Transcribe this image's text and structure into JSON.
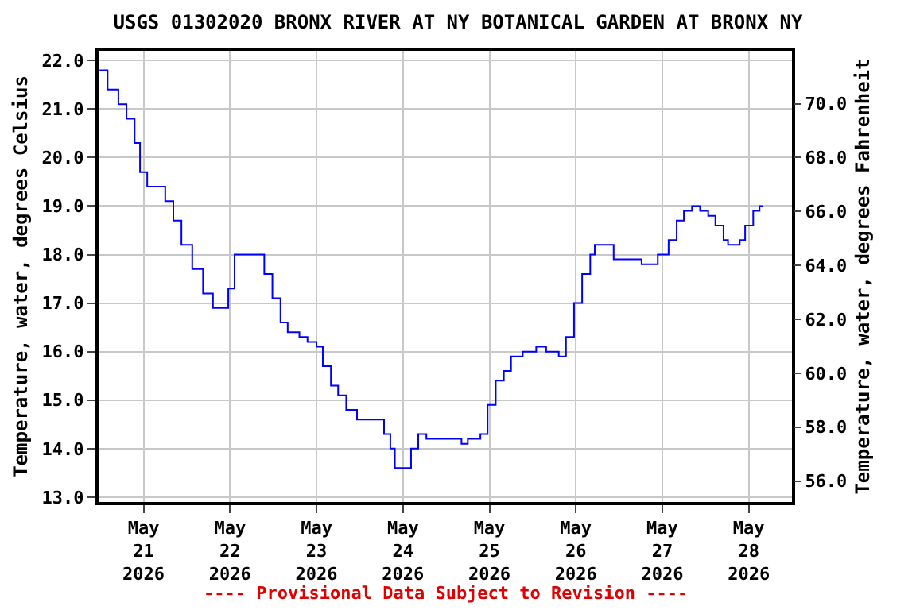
{
  "chart_data": {
    "type": "step",
    "title": "USGS 01302020 BRONX RIVER AT NY BOTANICAL GARDEN AT BRONX NY",
    "ylabel": "Temperature, water, degrees Celsius",
    "y2label": "Temperature, water, degrees Fahrenheit",
    "annotations": [
      "---- Provisional Data Subject to Revision ----"
    ],
    "x": [
      "2026-05-20T11:45",
      "2026-05-20T14:00",
      "2026-05-20T17:00",
      "2026-05-20T19:15",
      "2026-05-20T21:30",
      "2026-05-20T23:00",
      "2026-05-21T01:00",
      "2026-05-21T04:00",
      "2026-05-21T06:00",
      "2026-05-21T08:15",
      "2026-05-21T10:30",
      "2026-05-21T13:30",
      "2026-05-21T16:30",
      "2026-05-21T19:15",
      "2026-05-21T21:45",
      "2026-05-21T23:30",
      "2026-05-22T01:15",
      "2026-05-22T02:30",
      "2026-05-22T07:30",
      "2026-05-22T09:30",
      "2026-05-22T11:45",
      "2026-05-22T14:00",
      "2026-05-22T16:00",
      "2026-05-22T19:15",
      "2026-05-22T21:30",
      "2026-05-23T00:00",
      "2026-05-23T01:45",
      "2026-05-23T04:00",
      "2026-05-23T06:00",
      "2026-05-23T08:15",
      "2026-05-23T11:15",
      "2026-05-23T16:00",
      "2026-05-23T18:45",
      "2026-05-23T20:30",
      "2026-05-23T21:45",
      "2026-05-24T00:00",
      "2026-05-24T02:15",
      "2026-05-24T04:15",
      "2026-05-24T06:30",
      "2026-05-24T14:45",
      "2026-05-24T16:15",
      "2026-05-24T18:00",
      "2026-05-24T21:30",
      "2026-05-24T23:30",
      "2026-05-25T01:45",
      "2026-05-25T04:00",
      "2026-05-25T06:00",
      "2026-05-25T09:15",
      "2026-05-25T13:00",
      "2026-05-25T15:45",
      "2026-05-25T19:15",
      "2026-05-25T21:15",
      "2026-05-25T23:30",
      "2026-05-26T01:45",
      "2026-05-26T04:00",
      "2026-05-26T05:15",
      "2026-05-26T08:15",
      "2026-05-26T10:30",
      "2026-05-26T17:00",
      "2026-05-26T18:15",
      "2026-05-26T20:30",
      "2026-05-26T22:45",
      "2026-05-27T01:45",
      "2026-05-27T04:00",
      "2026-05-27T06:00",
      "2026-05-27T08:15",
      "2026-05-27T10:30",
      "2026-05-27T12:45",
      "2026-05-27T14:45",
      "2026-05-27T17:00",
      "2026-05-27T18:15",
      "2026-05-27T21:30",
      "2026-05-27T23:00",
      "2026-05-28T01:15",
      "2026-05-28T03:00",
      "2026-05-28T04:00"
    ],
    "series": [
      {
        "color": "#0000ff",
        "values": [
          21.8,
          21.4,
          21.1,
          20.8,
          20.3,
          19.7,
          19.4,
          19.4,
          19.1,
          18.7,
          18.2,
          17.7,
          17.2,
          16.9,
          16.9,
          17.3,
          18.0,
          18.0,
          18.0,
          17.6,
          17.1,
          16.6,
          16.4,
          16.3,
          16.2,
          16.1,
          15.7,
          15.3,
          15.1,
          14.8,
          14.6,
          14.6,
          14.3,
          14.0,
          13.6,
          13.6,
          14.0,
          14.3,
          14.2,
          14.2,
          14.1,
          14.2,
          14.3,
          14.9,
          15.4,
          15.6,
          15.9,
          16.0,
          16.1,
          16.0,
          15.9,
          16.3,
          17.0,
          17.6,
          18.0,
          18.2,
          18.2,
          17.9,
          17.9,
          17.8,
          17.8,
          18.0,
          18.3,
          18.7,
          18.9,
          19.0,
          18.9,
          18.8,
          18.6,
          18.3,
          18.2,
          18.3,
          18.6,
          18.9,
          19.0,
          19.0
        ]
      }
    ],
    "xlim": [
      "2026-05-20T11:30",
      "2026-05-28T12:00"
    ],
    "xticks": [
      {
        "value": "2026-05-21",
        "label": "May\n21\n2026"
      },
      {
        "value": "2026-05-22",
        "label": "May\n22\n2026"
      },
      {
        "value": "2026-05-23",
        "label": "May\n23\n2026"
      },
      {
        "value": "2026-05-24",
        "label": "May\n24\n2026"
      },
      {
        "value": "2026-05-25",
        "label": "May\n25\n2026"
      },
      {
        "value": "2026-05-26",
        "label": "May\n26\n2026"
      },
      {
        "value": "2026-05-27",
        "label": "May\n27\n2026"
      },
      {
        "value": "2026-05-28",
        "label": "May\n28\n2026"
      }
    ],
    "ylim": [
      12.9,
      22.2
    ],
    "yticks": [
      {
        "value": 13,
        "label": "13.0"
      },
      {
        "value": 14,
        "label": "14.0"
      },
      {
        "value": 15,
        "label": "15.0"
      },
      {
        "value": 16,
        "label": "16.0"
      },
      {
        "value": 17,
        "label": "17.0"
      },
      {
        "value": 18,
        "label": "18.0"
      },
      {
        "value": 19,
        "label": "19.0"
      },
      {
        "value": 20,
        "label": "20.0"
      },
      {
        "value": 21,
        "label": "21.0"
      },
      {
        "value": 22,
        "label": "22.0"
      }
    ],
    "y2lim": [
      55.22,
      71.96
    ],
    "y2ticks": [
      {
        "value": 56,
        "label": "56.0"
      },
      {
        "value": 58,
        "label": "58.0"
      },
      {
        "value": 60,
        "label": "60.0"
      },
      {
        "value": 62,
        "label": "62.0"
      },
      {
        "value": 64,
        "label": "64.0"
      },
      {
        "value": 66,
        "label": "66.0"
      },
      {
        "value": 68,
        "label": "68.0"
      },
      {
        "value": 70,
        "label": "70.0"
      }
    ],
    "grid": true,
    "line_style": "solid",
    "marker": "none"
  }
}
